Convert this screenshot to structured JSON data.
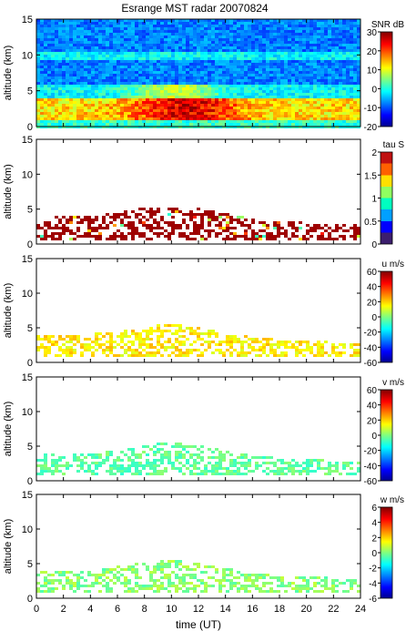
{
  "title": "Esrange MST radar 20070824",
  "xlabel": "time (UT)",
  "x_ticks": [
    "0",
    "2",
    "4",
    "6",
    "8",
    "10",
    "12",
    "14",
    "16",
    "18",
    "20",
    "22",
    "24"
  ],
  "y_ticks": [
    "0",
    "5",
    "10",
    "15"
  ],
  "chart_data": [
    {
      "type": "heatmap",
      "ylabel": "altitude (km)",
      "xlim": [
        0,
        24
      ],
      "ylim": [
        0,
        15
      ],
      "colorbar": {
        "label": "SNR dB",
        "range": [
          -20,
          30
        ],
        "ticks": [
          "30",
          "20",
          "10",
          "0",
          "-10",
          "-20"
        ]
      }
    },
    {
      "type": "heatmap",
      "ylabel": "altitude (km)",
      "xlim": [
        0,
        24
      ],
      "ylim": [
        0,
        15
      ],
      "colorbar": {
        "label": "tau S",
        "range": [
          0,
          2
        ],
        "ticks": [
          "2",
          "1.5",
          "1",
          "0.5",
          "0"
        ]
      }
    },
    {
      "type": "heatmap",
      "ylabel": "altitude (km)",
      "xlim": [
        0,
        24
      ],
      "ylim": [
        0,
        15
      ],
      "colorbar": {
        "label": "u m/s",
        "range": [
          -60,
          60
        ],
        "ticks": [
          "60",
          "40",
          "20",
          "0",
          "-20",
          "-40",
          "-60"
        ]
      }
    },
    {
      "type": "heatmap",
      "ylabel": "altitude (km)",
      "xlim": [
        0,
        24
      ],
      "ylim": [
        0,
        15
      ],
      "colorbar": {
        "label": "v m/s",
        "range": [
          -60,
          60
        ],
        "ticks": [
          "60",
          "40",
          "20",
          "0",
          "-20",
          "-40",
          "-60"
        ]
      }
    },
    {
      "type": "heatmap",
      "ylabel": "altitude (km)",
      "xlim": [
        0,
        24
      ],
      "ylim": [
        0,
        15
      ],
      "colorbar": {
        "label": "w m/s",
        "range": [
          -6,
          6
        ],
        "ticks": [
          "6",
          "4",
          "2",
          "0",
          "-2",
          "-4",
          "-6"
        ]
      }
    }
  ]
}
